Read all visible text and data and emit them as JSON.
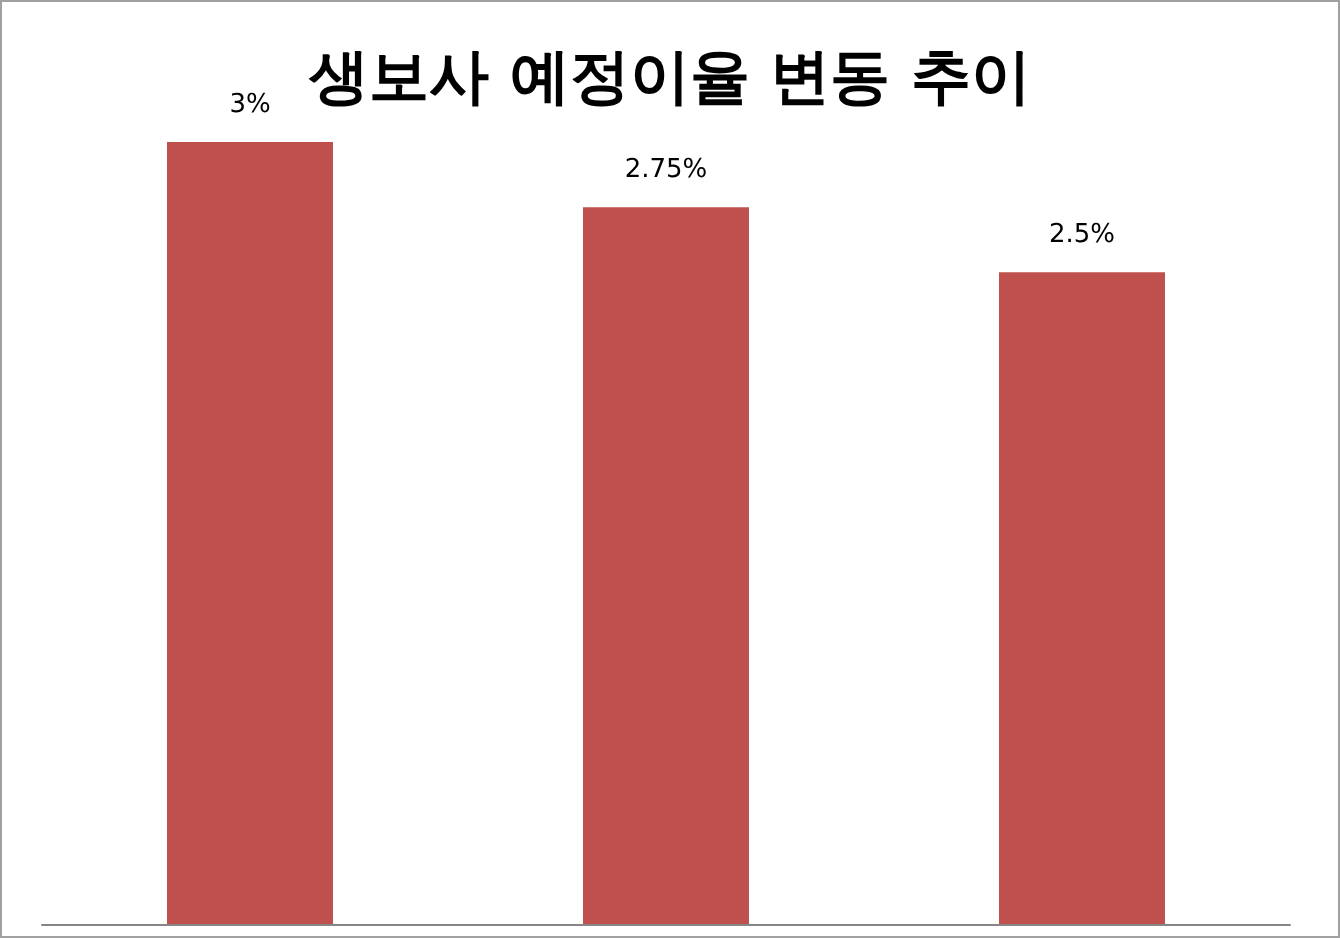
{
  "chart_data": {
    "type": "bar",
    "title": "생보사 예정이율 변동 추이",
    "categories": [
      null,
      null,
      null
    ],
    "values": [
      3,
      2.75,
      2.5
    ],
    "value_labels": [
      "3%",
      "2.75%",
      "2.5%"
    ],
    "color": "#c0504d",
    "tick_labels": false,
    "grid": false
  }
}
